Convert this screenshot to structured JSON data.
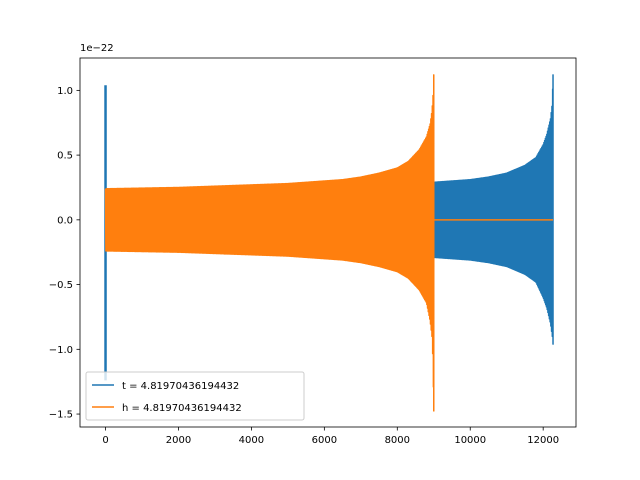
{
  "chart_data": {
    "type": "line",
    "title": "",
    "xlabel": "",
    "ylabel": "",
    "y_offset_text": "1e−22",
    "xlim": [
      -700,
      12900
    ],
    "ylim": [
      -1.6,
      1.25
    ],
    "x_ticks": [
      0,
      2000,
      4000,
      6000,
      8000,
      10000,
      12000
    ],
    "x_tick_labels": [
      "0",
      "2000",
      "4000",
      "6000",
      "8000",
      "10000",
      "12000"
    ],
    "y_ticks": [
      1.0,
      0.5,
      0.0,
      -0.5,
      -1.0,
      -1.5
    ],
    "y_tick_labels": [
      "1.0",
      "0.5",
      "0.0",
      "−0.5",
      "−1.0",
      "−1.5"
    ],
    "grid": false,
    "legend_position": "lower-left",
    "series": [
      {
        "name": "t = 4.81970436194432",
        "color": "#1f77b4",
        "envelope": {
          "x": [
            0,
            500,
            2000,
            4000,
            6000,
            8000,
            9000,
            9500,
            10000,
            10500,
            11000,
            11500,
            11800,
            12000,
            12100,
            12200,
            12250,
            12270
          ],
          "upper": [
            0.24,
            0.23,
            0.24,
            0.25,
            0.26,
            0.28,
            0.29,
            0.3,
            0.31,
            0.33,
            0.36,
            0.42,
            0.48,
            0.58,
            0.66,
            0.78,
            0.9,
            1.12
          ],
          "lower": [
            -0.24,
            -0.23,
            -0.24,
            -0.25,
            -0.26,
            -0.28,
            -0.29,
            -0.3,
            -0.31,
            -0.33,
            -0.36,
            -0.42,
            -0.48,
            -0.6,
            -0.68,
            -0.8,
            -0.9,
            -0.96
          ]
        },
        "spike": {
          "x": 0,
          "min": -1.24,
          "max": 1.04
        }
      },
      {
        "name": "h = 4.81970436194432",
        "color": "#ff7f0e",
        "envelope": {
          "x": [
            0,
            1000,
            2000,
            3000,
            4000,
            5000,
            6000,
            6500,
            7000,
            7500,
            8000,
            8300,
            8600,
            8800,
            8900,
            8950,
            8980,
            9000
          ],
          "upper": [
            0.24,
            0.245,
            0.25,
            0.26,
            0.27,
            0.28,
            0.3,
            0.31,
            0.33,
            0.36,
            0.4,
            0.45,
            0.54,
            0.64,
            0.74,
            0.84,
            0.96,
            1.12
          ],
          "lower": [
            -0.24,
            -0.245,
            -0.25,
            -0.26,
            -0.27,
            -0.28,
            -0.3,
            -0.31,
            -0.33,
            -0.36,
            -0.4,
            -0.45,
            -0.54,
            -0.64,
            -0.78,
            -0.9,
            -1.1,
            -1.48
          ]
        },
        "flat": {
          "x": [
            9000,
            12270
          ],
          "y": 0.0
        }
      }
    ]
  }
}
